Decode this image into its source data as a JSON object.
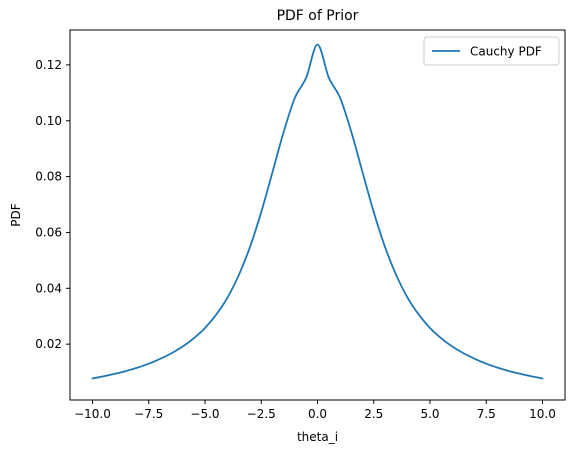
{
  "chart_data": {
    "type": "line",
    "title": "PDF of Prior",
    "xlabel": "theta_i",
    "ylabel": "PDF",
    "xlim": [
      -10.0,
      10.0
    ],
    "ylim": [
      0.0,
      0.1325
    ],
    "x_ticks": [
      -10.0,
      -7.5,
      -5.0,
      -2.5,
      0.0,
      2.5,
      5.0,
      7.5,
      10.0
    ],
    "x_tick_labels": [
      "−10.0",
      "−7.5",
      "−5.0",
      "−2.5",
      "0.0",
      "2.5",
      "5.0",
      "7.5",
      "10.0"
    ],
    "y_ticks": [
      0.02,
      0.04,
      0.06,
      0.08,
      0.1,
      0.12
    ],
    "y_tick_labels": [
      "0.02",
      "0.04",
      "0.06",
      "0.08",
      "0.10",
      "0.12"
    ],
    "grid": false,
    "legend": {
      "position": "top-right",
      "entries": [
        "Cauchy PDF"
      ]
    },
    "series": [
      {
        "name": "Cauchy PDF",
        "color": "#1f77b4",
        "x": [
          -10.0,
          -9.5,
          -9.0,
          -8.5,
          -8.0,
          -7.5,
          -7.0,
          -6.5,
          -6.0,
          -5.5,
          -5.0,
          -4.5,
          -4.0,
          -3.5,
          -3.0,
          -2.5,
          -2.0,
          -1.5,
          -1.0,
          -0.5,
          0.0,
          0.5,
          1.0,
          1.5,
          2.0,
          2.5,
          3.0,
          3.5,
          4.0,
          4.5,
          5.0,
          5.5,
          6.0,
          6.5,
          7.0,
          7.5,
          8.0,
          8.5,
          9.0,
          9.5,
          10.0
        ],
        "y": [
          0.0077,
          0.0085,
          0.0094,
          0.0104,
          0.0116,
          0.013,
          0.0147,
          0.0167,
          0.0191,
          0.0221,
          0.0258,
          0.0306,
          0.0367,
          0.0447,
          0.0548,
          0.0673,
          0.0816,
          0.0961,
          0.1083,
          0.1155,
          0.1273,
          0.1155,
          0.1083,
          0.0961,
          0.0816,
          0.0673,
          0.0548,
          0.0447,
          0.0367,
          0.0306,
          0.0258,
          0.0221,
          0.0191,
          0.0167,
          0.0147,
          0.013,
          0.0116,
          0.0104,
          0.0094,
          0.0085,
          0.0077
        ]
      }
    ]
  }
}
